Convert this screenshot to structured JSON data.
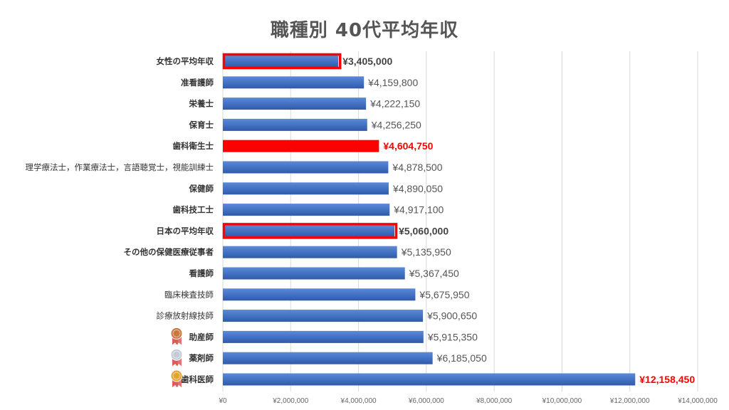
{
  "chart_data": {
    "type": "bar",
    "orientation": "horizontal",
    "title": "職種別 40代平均年収",
    "xlabel": "",
    "ylabel": "",
    "xlim": [
      0,
      14000000
    ],
    "grid": true,
    "legend": "none",
    "x_ticks": [
      "¥0",
      "¥2,000,000",
      "¥4,000,000",
      "¥6,000,000",
      "¥8,000,000",
      "¥10,000,000",
      "¥12,000,000",
      "¥14,000,000"
    ],
    "x_tick_values": [
      0,
      2000000,
      4000000,
      6000000,
      8000000,
      10000000,
      12000000,
      14000000
    ],
    "colors": {
      "bar": "#4472c4",
      "highlight": "#ff0000",
      "grid": "#d9d9d9",
      "medal_gold": "#e0a531",
      "medal_silver": "#c3cbd6",
      "medal_bronze": "#c8783e",
      "ribbon": "#e15a5a"
    },
    "categories": [
      "女性の平均年収",
      "准看護師",
      "栄養士",
      "保育士",
      "歯科衛生士",
      "理学療法士，作業療法士，言語聴覚士，視能訓練士",
      "保健師",
      "歯科技工士",
      "日本の平均年収",
      "その他の保健医療従事者",
      "看護師",
      "臨床検査技師",
      "診療放射線技師",
      "助産師",
      "薬剤師",
      "歯科医師"
    ],
    "values": [
      3405000,
      4159800,
      4222150,
      4256250,
      4604750,
      4878500,
      4890050,
      4917100,
      5060000,
      5135950,
      5367450,
      5675950,
      5900650,
      5915350,
      6185050,
      12158450
    ],
    "data_labels": [
      "¥3,405,000",
      "¥4,159,800",
      "¥4,222,150",
      "¥4,256,250",
      "¥4,604,750",
      "¥4,878,500",
      "¥4,890,050",
      "¥4,917,100",
      "¥5,060,000",
      "¥5,135,950",
      "¥5,367,450",
      "¥5,675,950",
      "¥5,900,650",
      "¥5,915,350",
      "¥6,185,050",
      "¥12,158,450"
    ],
    "styles": [
      "outlined",
      "normal",
      "normal",
      "normal",
      "highlight",
      "normal",
      "normal",
      "normal",
      "outlined",
      "normal",
      "normal",
      "normal",
      "normal",
      "normal",
      "normal",
      "normal"
    ],
    "label_styles": [
      "bold",
      "normal",
      "normal",
      "normal",
      "red",
      "normal",
      "normal",
      "normal",
      "bold",
      "normal",
      "normal",
      "normal",
      "normal",
      "normal",
      "normal",
      "red"
    ],
    "bold_categories": [
      true,
      true,
      true,
      true,
      true,
      false,
      true,
      true,
      true,
      true,
      true,
      false,
      false,
      true,
      true,
      true
    ],
    "medals": [
      "",
      "",
      "",
      "",
      "",
      "",
      "",
      "",
      "",
      "",
      "",
      "",
      "",
      "medal-bronze-icon",
      "medal-silver-icon",
      "medal-gold-icon"
    ]
  }
}
